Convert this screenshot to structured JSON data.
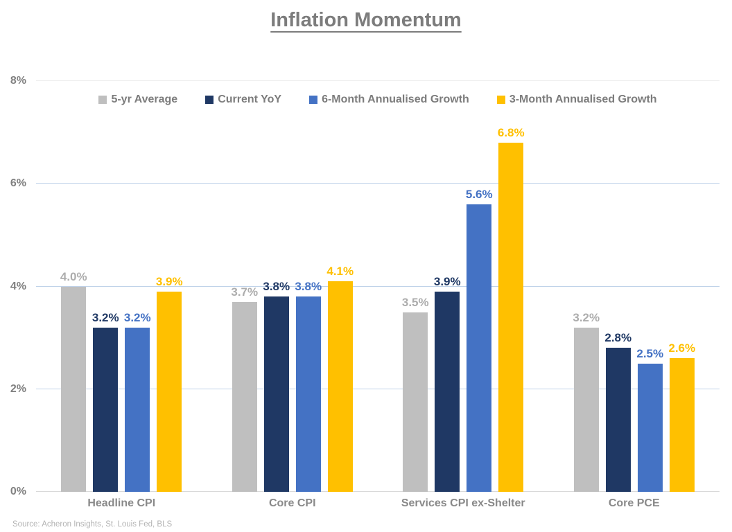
{
  "title": "Inflation Momentum",
  "source": "Source: Acheron Insights, St. Louis Fed, BLS",
  "colors": {
    "background": "#FFFFFF",
    "title_text": "#7C7C7C",
    "axis_text": "#808080",
    "category_text": "#898989",
    "legend_text": "#7C7C7C",
    "gridline": "#BFD2E9",
    "top_border": "#EDEDED",
    "axis_line": "#D9D9D9",
    "source_text": "#B3B3B3",
    "series_gray": "#BFBFBF",
    "series_navy": "#1F3864",
    "series_blue": "#4472C4",
    "series_gold": "#FFC000"
  },
  "chart_data": {
    "type": "bar",
    "title": "Inflation Momentum",
    "xlabel": "",
    "ylabel": "",
    "ylim": [
      0,
      8
    ],
    "ytick_values": [
      0,
      2,
      4,
      6,
      8
    ],
    "ytick_labels": [
      "0%",
      "2%",
      "4%",
      "6%",
      "8%"
    ],
    "grid": true,
    "legend_position": "top",
    "categories": [
      "Headline CPI",
      "Core CPI",
      "Services CPI ex-Shelter",
      "Core PCE"
    ],
    "series": [
      {
        "name": "5-yr Average",
        "color": "#BFBFBF",
        "label_color": "#ADADAD",
        "values": [
          4.0,
          3.7,
          3.5,
          3.2
        ],
        "labels": [
          "4.0%",
          "3.7%",
          "3.5%",
          "3.2%"
        ]
      },
      {
        "name": "Current YoY",
        "color": "#1F3864",
        "label_color": "#1F3864",
        "values": [
          3.2,
          3.8,
          3.9,
          2.8
        ],
        "labels": [
          "3.2%",
          "3.8%",
          "3.9%",
          "2.8%"
        ]
      },
      {
        "name": "6-Month Annualised Growth",
        "color": "#4472C4",
        "label_color": "#4472C4",
        "values": [
          3.2,
          3.8,
          5.6,
          2.5
        ],
        "labels": [
          "3.2%",
          "3.8%",
          "5.6%",
          "2.5%"
        ]
      },
      {
        "name": "3-Month Annualised Growth",
        "color": "#FFC000",
        "label_color": "#FFC000",
        "values": [
          3.9,
          4.1,
          6.8,
          2.6
        ],
        "labels": [
          "3.9%",
          "4.1%",
          "6.8%",
          "2.6%"
        ]
      }
    ]
  }
}
